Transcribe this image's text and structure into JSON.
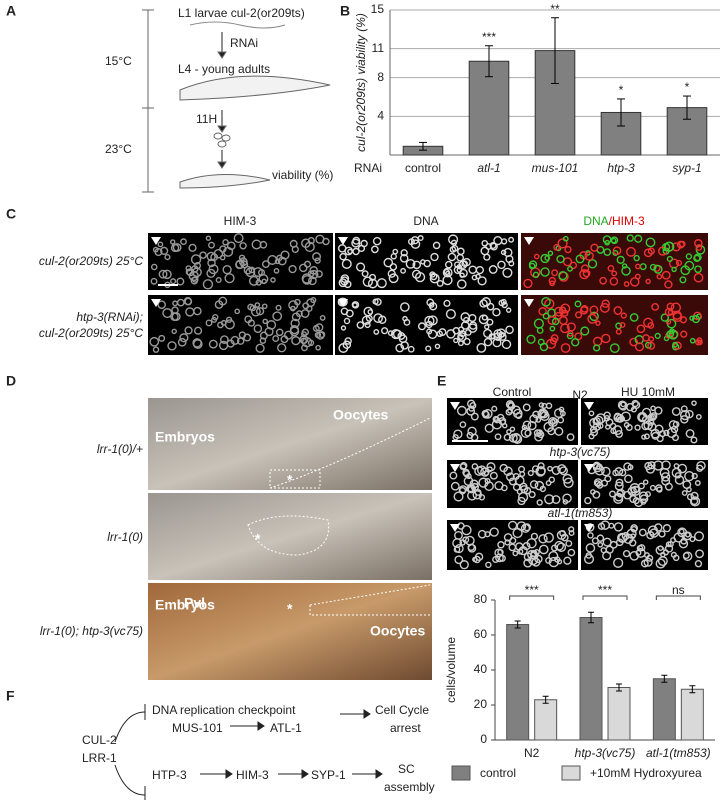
{
  "panel_labels": [
    "A",
    "B",
    "C",
    "D",
    "E",
    "F"
  ],
  "panel_a": {
    "start": "L1 larvae cul-2(or209ts)",
    "treatment": "RNAi",
    "stage": "L4 - young adults",
    "time": "11H",
    "readout": "viability (%)",
    "temp_1": "15°C",
    "temp_2": "23°C"
  },
  "chart_data": [
    {
      "type": "bar",
      "ylabel": "cul-2(or209ts) viability (%)",
      "xlabel": "RNAi",
      "categories": [
        "control",
        "atl-1",
        "mus-101",
        "htp-3",
        "syp-1"
      ],
      "values": [
        0.9,
        9.7,
        10.8,
        4.4,
        4.9
      ],
      "errors": [
        0.4,
        1.6,
        3.4,
        1.4,
        1.2
      ],
      "significance": [
        null,
        "***",
        "**",
        "*",
        "*"
      ],
      "color": "#808080",
      "ylim": [
        0,
        15
      ],
      "yticks": [
        4,
        8,
        11,
        15
      ],
      "grid": true
    },
    {
      "type": "grouped_bar",
      "ylabel": "cells/volume",
      "categories": [
        "N2",
        "htp-3(vc75)",
        "atl-1(tm853)"
      ],
      "series": [
        {
          "name": "control",
          "color": "#808080",
          "values": [
            66,
            70,
            35
          ],
          "errors": [
            2,
            3,
            2
          ]
        },
        {
          "name": "+10mM Hydroxyurea",
          "color": "#d9d9d9",
          "values": [
            23,
            30,
            29
          ],
          "errors": [
            2,
            2,
            2
          ]
        }
      ],
      "significance": [
        "***",
        "***",
        "ns"
      ],
      "ylim": [
        0,
        80
      ],
      "yticks": [
        0,
        20,
        40,
        60,
        80
      ],
      "grid": false,
      "legend": "bottom"
    }
  ],
  "panel_c": {
    "header_1": "HIM-3",
    "header_2": "DNA",
    "header_3a": "DNA",
    "header_3b": "/HIM-3",
    "row_1": "cul-2(or209ts) 25°C",
    "row_2a": "htp-3(RNAi);",
    "row_2b": "cul-2(or209ts) 25°C"
  },
  "panel_d": {
    "row_1": "lrr-1(0)/+",
    "row_2": "lrr-1(0)",
    "row_3": "lrr-1(0); htp-3(vc75)",
    "embryos_1": "Embryos",
    "oocytes_1": "Oocytes",
    "star": "*",
    "pvl": "Pvl",
    "embryos_3": "Embryos",
    "oocytes_3": "Oocytes"
  },
  "panel_e": {
    "col_1": "Control",
    "col_2": "HU 10mM",
    "row_1": "N2",
    "row_2": "htp-3(vc75)",
    "row_3": "atl-1(tm853)"
  },
  "panel_f": {
    "node_1": "CUL-2",
    "node_2": "LRR-1",
    "node_3": "DNA replication checkpoint",
    "node_4": "MUS-101",
    "node_5": "ATL-1",
    "node_6a": "Cell Cycle",
    "node_6b": "arrest",
    "node_7": "HTP-3",
    "node_8": "HIM-3",
    "node_9": "SYP-1",
    "node_10a": "SC",
    "node_10b": "assembly"
  }
}
